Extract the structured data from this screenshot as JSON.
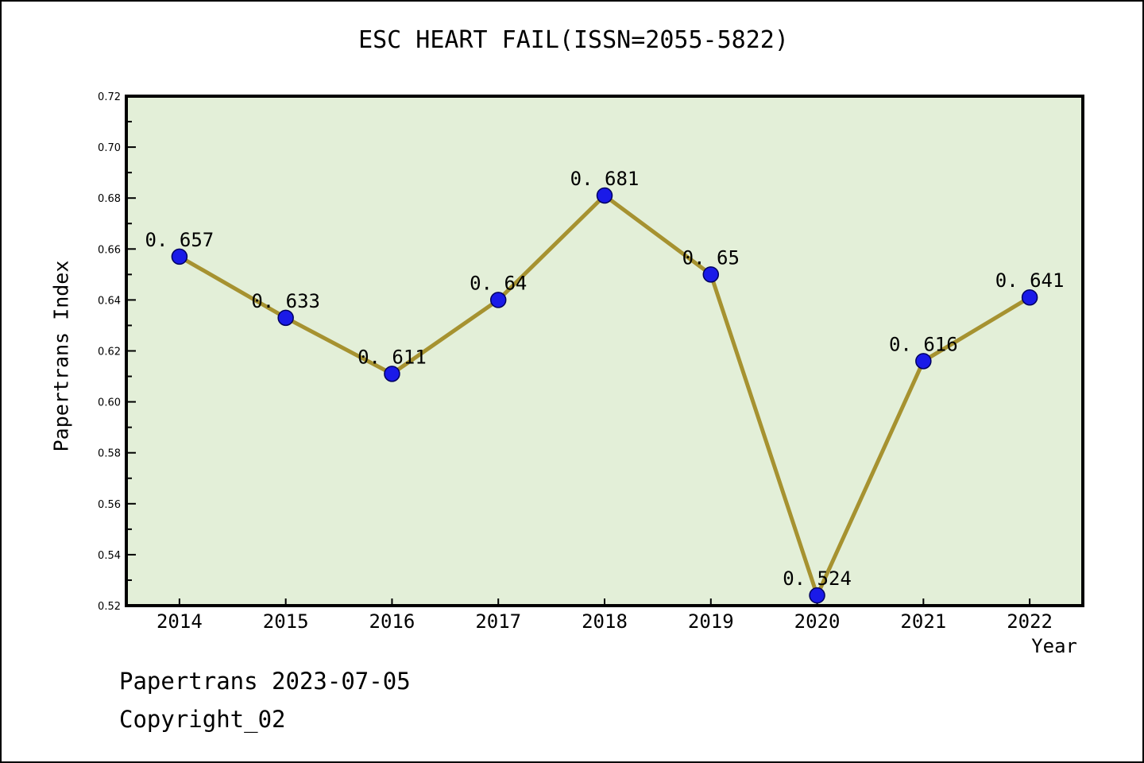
{
  "page": {
    "background": "#ffffff",
    "frame_color": "#000000"
  },
  "chart_data": {
    "type": "line",
    "title": "ESC HEART FAIL(ISSN=2055-5822)",
    "xlabel": "Year",
    "ylabel": "Papertrans Index",
    "x": [
      2014,
      2015,
      2016,
      2017,
      2018,
      2019,
      2020,
      2021,
      2022
    ],
    "series": [
      {
        "name": "Papertrans Index",
        "values": [
          0.657,
          0.633,
          0.611,
          0.64,
          0.681,
          0.65,
          0.524,
          0.616,
          0.641
        ]
      }
    ],
    "point_labels": [
      "0. 657",
      "0. 633",
      "0. 611",
      "0. 64",
      "0. 681",
      "0. 65",
      "0. 524",
      "0. 616",
      "0. 641"
    ],
    "xtick_labels": [
      "2014",
      "2015",
      "2016",
      "2017",
      "2018",
      "2019",
      "2020",
      "2021",
      "2022"
    ],
    "ytick_labels": [
      "0.52",
      "0.54",
      "0.56",
      "0.58",
      "0.60",
      "0.62",
      "0.64",
      "0.66",
      "0.68",
      "0.70",
      "0.72"
    ],
    "ylim": [
      0.52,
      0.72
    ],
    "xlim": [
      2013.5,
      2022.5
    ],
    "ytick_interval": 0.02,
    "ytick_minor_interval": 0.01,
    "grid": false,
    "legend": false,
    "colors": {
      "plot_background": "#e3efd8",
      "line": "#a69230",
      "marker_fill": "#1a1ae8",
      "marker_edge": "#000060",
      "axis": "#000000",
      "text": "#000000"
    }
  },
  "footer": {
    "line1": "Papertrans 2023-07-05",
    "line2": "Copyright_02"
  }
}
